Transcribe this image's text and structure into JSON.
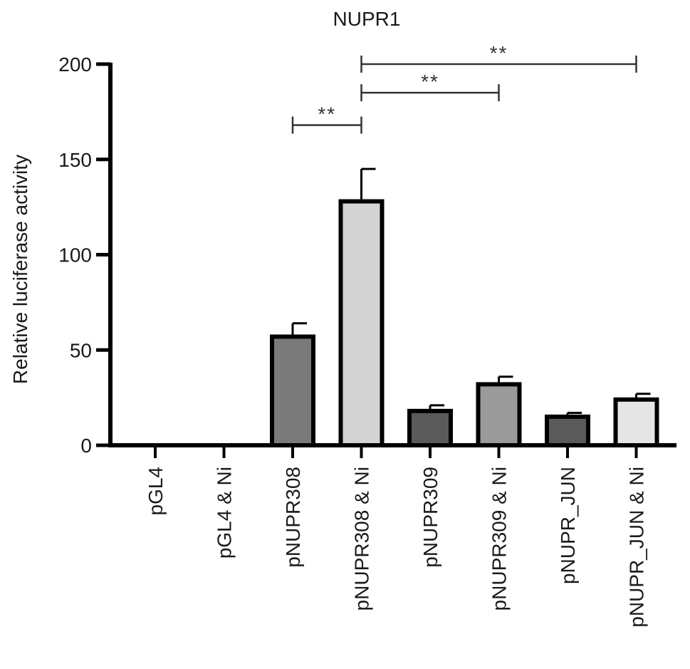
{
  "chart_data": {
    "type": "bar",
    "title": "NUPR1",
    "ylabel": "Relative luciferase activity",
    "xlabel": "",
    "ylim": [
      0,
      200
    ],
    "yticks": [
      0,
      50,
      100,
      150,
      200
    ],
    "yticks_labels": [
      "0",
      "50",
      "100",
      "150",
      "200"
    ],
    "categories": [
      "pGL4",
      "pGL4 & Ni",
      "pNUPR308",
      "pNUPR308 & Ni",
      "pNUPR309",
      "pNUPR309 & Ni",
      "pNUPR_JUN",
      "pNUPR_JUN & Ni"
    ],
    "values": [
      0,
      0,
      57,
      128,
      18,
      32,
      15,
      24
    ],
    "errors": [
      0,
      0,
      7,
      17,
      3,
      4,
      2,
      3
    ],
    "bar_colors": [
      "#808080",
      "#808080",
      "#7a7a7a",
      "#d3d3d3",
      "#5a5a5a",
      "#9a9a9a",
      "#5a5a5a",
      "#e6e6e6"
    ],
    "significance": [
      {
        "from": "pNUPR308",
        "to": "pNUPR308 & Ni",
        "y": 168,
        "label": "**"
      },
      {
        "from": "pNUPR308 & Ni",
        "to": "pNUPR309 & Ni",
        "y": 185,
        "label": "**"
      },
      {
        "from": "pNUPR308 & Ni",
        "to": "pNUPR_JUN & Ni",
        "y": 200,
        "label": "**"
      }
    ]
  }
}
